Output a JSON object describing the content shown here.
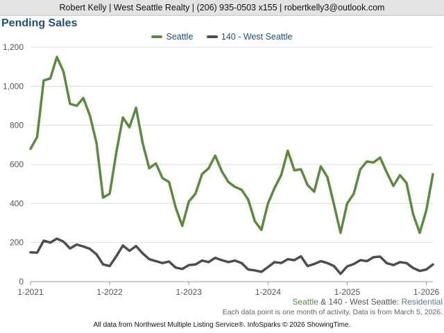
{
  "header": {
    "contact": "Robert Kelly | West Seattle Realty | (206) 935-0503 x155 | robertkelly3@outlook.com"
  },
  "title": "Pending Sales",
  "caption": {
    "part1": "Seattle",
    "amp": " & ",
    "part2": "140 - West Seattle",
    "colon": ": ",
    "part3": "Residential"
  },
  "note": "Each data point is one month of activity. Data is from March 5, 2026.",
  "footer": "All data from Northwest Multiple Listing Service®. InfoSparks © 2026 ShowingTime.",
  "colors": {
    "seattle": "#5b8a3c",
    "west_seattle": "#4a4d52",
    "grid": "#d9d9d9",
    "axis": "#9a9a9a"
  },
  "chart_data": {
    "type": "line",
    "title": "Pending Sales",
    "x_start": "2021-01",
    "x_end": "2026-02",
    "x_tick_labels": [
      "1-2021",
      "1-2022",
      "1-2023",
      "1-2024",
      "1-2025",
      "1-2026"
    ],
    "x_tick_dates": [
      "2021-01",
      "2022-01",
      "2023-01",
      "2024-01",
      "2025-01",
      "2026-01"
    ],
    "y_tick_labels": [
      "0",
      "200",
      "400",
      "600",
      "800",
      "1,000",
      "1,200"
    ],
    "y_ticks": [
      0,
      200,
      400,
      600,
      800,
      1000,
      1200
    ],
    "ylim": [
      0,
      1200
    ],
    "legend_position": "top-center",
    "grid": true,
    "series": [
      {
        "name": "Seattle",
        "values": [
          680,
          740,
          1030,
          1040,
          1150,
          1075,
          910,
          900,
          940,
          850,
          710,
          430,
          450,
          660,
          840,
          790,
          890,
          710,
          580,
          605,
          530,
          510,
          380,
          285,
          410,
          450,
          550,
          580,
          645,
          565,
          510,
          485,
          470,
          420,
          310,
          265,
          400,
          480,
          545,
          670,
          570,
          575,
          495,
          460,
          590,
          535,
          395,
          250,
          400,
          450,
          575,
          615,
          610,
          635,
          560,
          490,
          545,
          505,
          345,
          250,
          365,
          550
        ]
      },
      {
        "name": "140 - West Seattle",
        "values": [
          150,
          148,
          210,
          200,
          220,
          205,
          170,
          190,
          180,
          168,
          140,
          88,
          80,
          130,
          185,
          158,
          182,
          145,
          115,
          105,
          95,
          103,
          72,
          65,
          85,
          88,
          108,
          100,
          122,
          110,
          100,
          108,
          95,
          62,
          58,
          50,
          75,
          100,
          95,
          115,
          110,
          130,
          80,
          90,
          105,
          95,
          80,
          40,
          78,
          90,
          110,
          105,
          125,
          128,
          95,
          85,
          100,
          95,
          70,
          55,
          62,
          88
        ]
      }
    ]
  }
}
